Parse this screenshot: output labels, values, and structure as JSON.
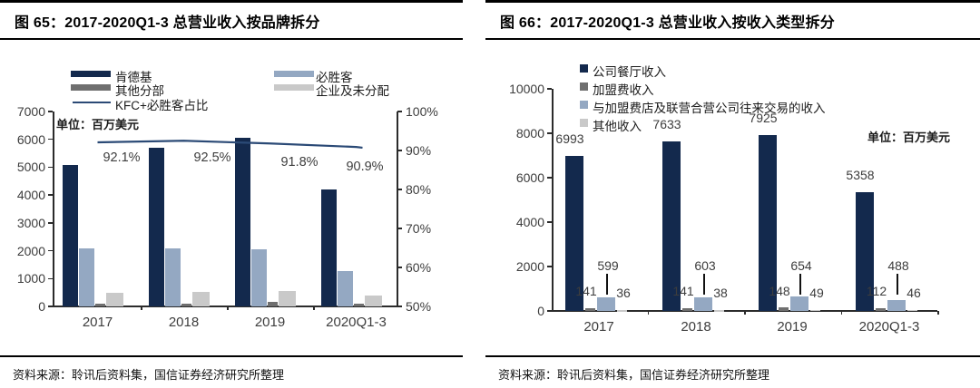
{
  "page": {
    "background": "#ffffff"
  },
  "chart_data": [
    {
      "type": "bar",
      "combo": "bar+line",
      "title": "图 65：2017-2020Q1-3 总营业收入按品牌拆分",
      "source": "资料来源：聆讯后资料集，国信证券经济研究所整理",
      "unit_note": "单位：百万美元",
      "categories": [
        "2017",
        "2018",
        "2019",
        "2020Q1-3"
      ],
      "series": [
        {
          "key": "kfc",
          "name": "肯德基",
          "type": "bar",
          "color": "#13294D",
          "values": [
            5070,
            5690,
            6040,
            4190
          ]
        },
        {
          "key": "pizza-hut",
          "name": "必胜客",
          "type": "bar",
          "color": "#94A8C2",
          "values": [
            2080,
            2080,
            2040,
            1260
          ]
        },
        {
          "key": "other-segment",
          "name": "其他分部",
          "type": "bar",
          "color": "#6F6F6F",
          "values": [
            110,
            110,
            150,
            110
          ]
        },
        {
          "key": "corporate-unallocated",
          "name": "企业及未分配",
          "type": "bar",
          "color": "#C9C9C9",
          "values": [
            500,
            505,
            540,
            400
          ]
        },
        {
          "key": "kfc-ph-ratio",
          "name": "KFC+必胜客占比",
          "type": "line",
          "axis": "right",
          "color": "#2B4A76",
          "values": [
            92.1,
            92.5,
            91.8,
            90.9
          ],
          "labels": [
            "92.1%",
            "92.5%",
            "91.8%",
            "90.9%"
          ]
        }
      ],
      "y_left": {
        "min": 0,
        "max": 7000,
        "ticks": [
          "0",
          "1000",
          "2000",
          "3000",
          "4000",
          "5000",
          "6000",
          "7000"
        ]
      },
      "y_right": {
        "min": 50,
        "max": 100,
        "ticks": [
          "50%",
          "60%",
          "70%",
          "80%",
          "90%",
          "100%"
        ]
      },
      "legend_position": "top",
      "grid": false
    },
    {
      "type": "bar",
      "title": "图 66：2017-2020Q1-3 总营业收入按收入类型拆分",
      "source": "资料来源：聆讯后资料集，国信证券经济研究所整理",
      "unit_note": "单位：百万美元",
      "categories": [
        "2017",
        "2018",
        "2019",
        "2020Q1-3"
      ],
      "series": [
        {
          "key": "company-restaurant-revenue",
          "name": "公司餐厅收入",
          "type": "bar",
          "color": "#13294D",
          "values": [
            6993,
            7633,
            7925,
            5358
          ]
        },
        {
          "key": "franchise-fee-revenue",
          "name": "加盟费收入",
          "type": "bar",
          "color": "#6F6F6F",
          "values": [
            141,
            141,
            148,
            112
          ]
        },
        {
          "key": "franchisee-transactions-revenue",
          "name": "与加盟费店及联营合营公司往来交易的收入",
          "type": "bar",
          "color": "#94A8C2",
          "values": [
            599,
            603,
            654,
            488
          ]
        },
        {
          "key": "other-revenue",
          "name": "其他收入",
          "type": "bar",
          "color": "#C9C9C9",
          "values": [
            36,
            38,
            49,
            46
          ]
        }
      ],
      "y_left": {
        "min": 0,
        "max": 10000,
        "ticks": [
          "0",
          "2000",
          "4000",
          "6000",
          "8000",
          "10000"
        ]
      },
      "legend_position": "top",
      "grid": false
    }
  ]
}
